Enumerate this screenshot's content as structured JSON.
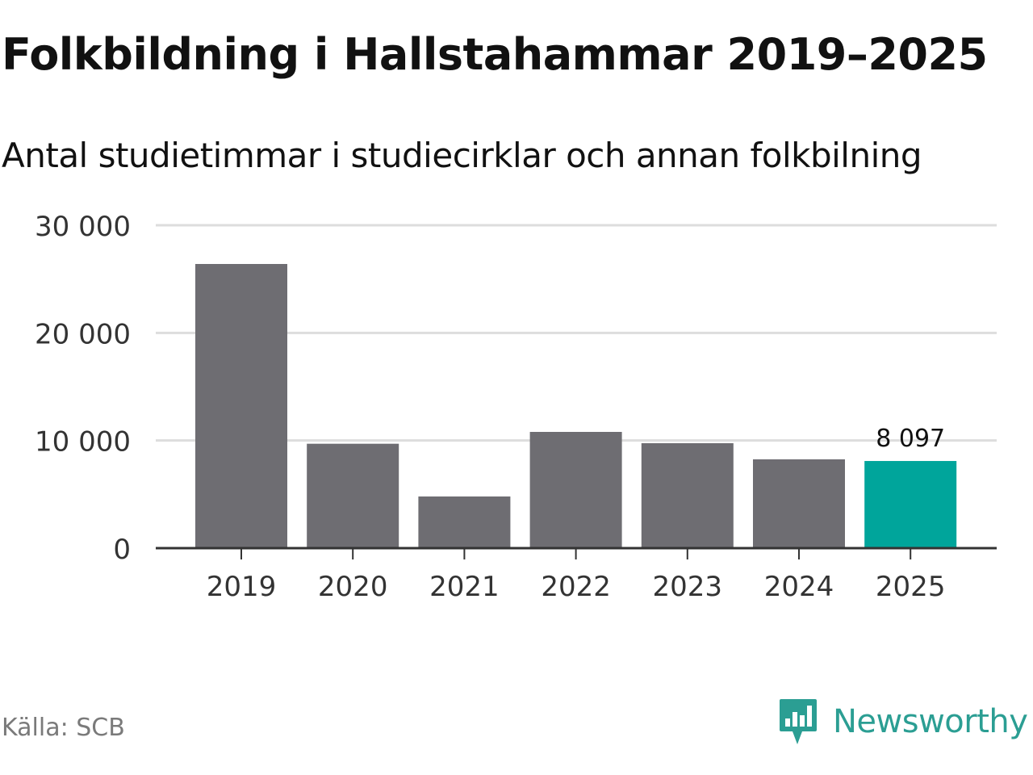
{
  "header": {
    "title": "Folkbildning i Hallstahammar 2019–2025",
    "subtitle": "Antal studietimmar i studiecirklar och annan folkbilning"
  },
  "footer": {
    "source": "Källa: SCB",
    "brand": "Newsworthy"
  },
  "colors": {
    "bar": "#6e6d72",
    "highlight": "#00a59b",
    "grid": "#dddddd",
    "axis": "#333333",
    "brand": "#2b9e93"
  },
  "chart_data": {
    "type": "bar",
    "categories": [
      "2019",
      "2020",
      "2021",
      "2022",
      "2023",
      "2024",
      "2025"
    ],
    "values": [
      26400,
      9700,
      4800,
      10800,
      9750,
      8250,
      8097
    ],
    "highlight_index": 6,
    "data_labels": [
      {
        "index": 6,
        "text": "8 097"
      }
    ],
    "yticks": [
      0,
      10000,
      20000,
      30000
    ],
    "ytick_labels": [
      "0",
      "10 000",
      "20 000",
      "30 000"
    ],
    "ylim": [
      0,
      30000
    ],
    "xlabel": "",
    "ylabel": "",
    "grid": true,
    "legend": "none"
  }
}
